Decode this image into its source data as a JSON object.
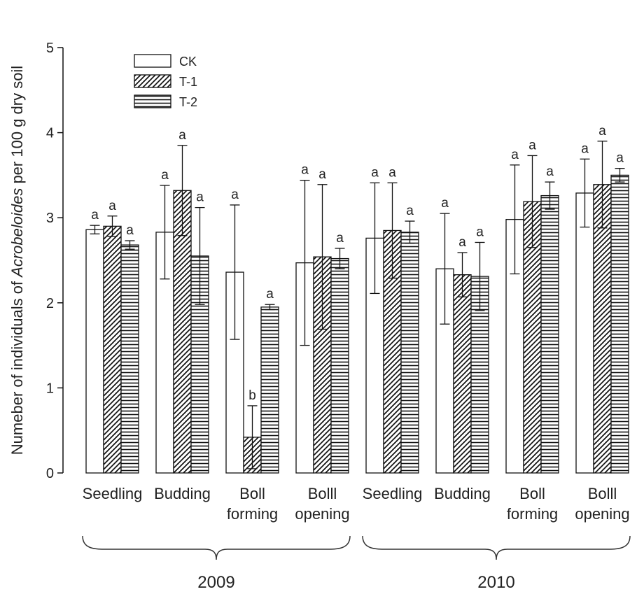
{
  "chart_data": {
    "type": "bar",
    "ylabel": {
      "before": "Numeber of individuals of ",
      "italic": "Acrobeloides",
      "after": " per 100 g dry soil"
    },
    "ylim": [
      0,
      5
    ],
    "yticks": [
      "0",
      "1",
      "2",
      "3",
      "4",
      "5"
    ],
    "categories": [
      {
        "lines": [
          "Seedling"
        ]
      },
      {
        "lines": [
          "Budding"
        ]
      },
      {
        "lines": [
          "Boll",
          "forming"
        ]
      },
      {
        "lines": [
          "Bolll",
          "opening"
        ]
      },
      {
        "lines": [
          "Seedling"
        ]
      },
      {
        "lines": [
          "Budding"
        ]
      },
      {
        "lines": [
          "Boll",
          "forming"
        ]
      },
      {
        "lines": [
          "Bolll",
          "opening"
        ]
      }
    ],
    "groups": [
      {
        "label": "2009",
        "from": 0,
        "to": 3
      },
      {
        "label": "2010",
        "from": 4,
        "to": 7
      }
    ],
    "series": [
      {
        "name": "CK",
        "pattern": "open",
        "values": [
          2.86,
          2.83,
          2.36,
          2.47,
          2.76,
          2.4,
          2.98,
          3.29
        ],
        "errors": [
          0.05,
          0.55,
          0.79,
          0.97,
          0.65,
          0.65,
          0.64,
          0.4
        ],
        "letters": [
          "a",
          "a",
          "a",
          "a",
          "a",
          "a",
          "a",
          "a"
        ]
      },
      {
        "name": "T-1",
        "pattern": "diagonal",
        "values": [
          2.9,
          3.32,
          0.42,
          2.54,
          2.85,
          2.33,
          3.19,
          3.39
        ],
        "errors": [
          0.12,
          0.53,
          0.37,
          0.85,
          0.56,
          0.26,
          0.54,
          0.51
        ],
        "letters": [
          "a",
          "a",
          "b",
          "a",
          "a",
          "a",
          "a",
          "a"
        ]
      },
      {
        "name": "T-2",
        "pattern": "horizontal",
        "values": [
          2.68,
          2.55,
          1.95,
          2.52,
          2.83,
          2.31,
          3.26,
          3.5
        ],
        "errors": [
          0.05,
          0.57,
          0.03,
          0.12,
          0.13,
          0.4,
          0.16,
          0.08
        ],
        "letters": [
          "a",
          "a",
          "a",
          "a",
          "a",
          "a",
          "a",
          "a"
        ]
      }
    ],
    "legend_position": "top-left",
    "grid": false
  }
}
